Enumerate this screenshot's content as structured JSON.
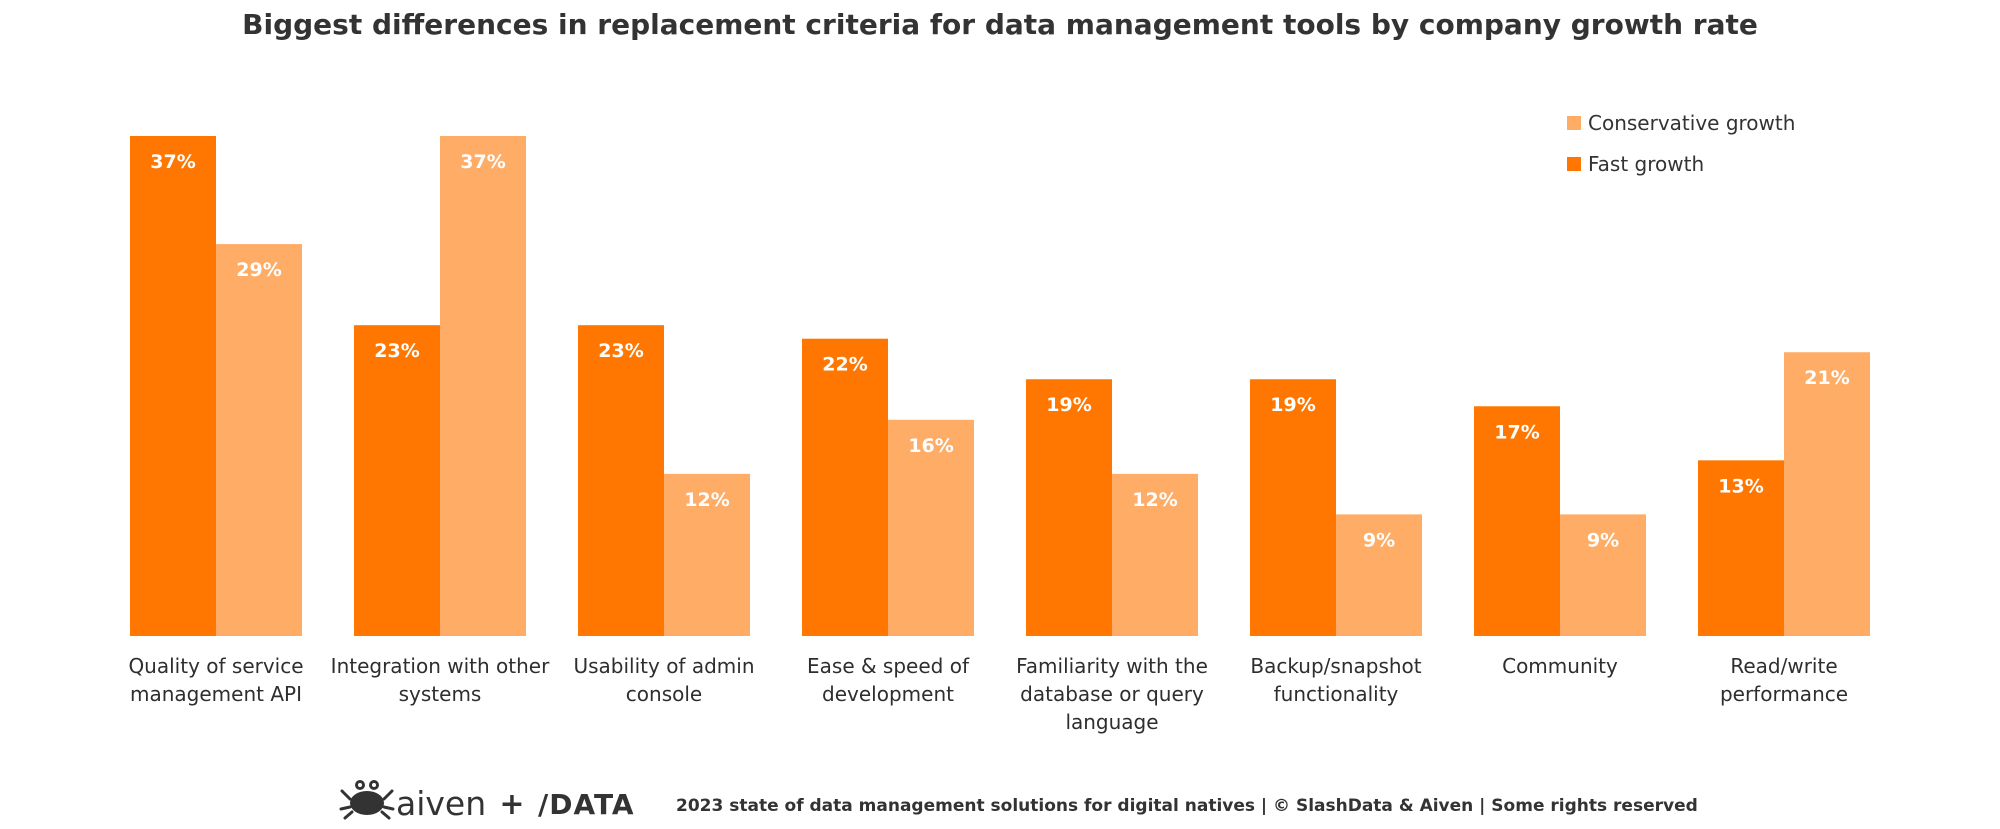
{
  "chart_data": {
    "type": "bar",
    "title": "Biggest differences in replacement criteria for data management tools by company growth rate",
    "categories": [
      [
        "Quality of service",
        "management API"
      ],
      [
        "Integration with other",
        "systems"
      ],
      [
        "Usability of admin",
        "console"
      ],
      [
        "Ease & speed of",
        "development"
      ],
      [
        "Familiarity with the",
        "database or query",
        "language"
      ],
      [
        "Backup/snapshot",
        "functionality"
      ],
      [
        "Community"
      ],
      [
        "Read/write",
        "performance"
      ]
    ],
    "series": [
      {
        "name": "Fast growth",
        "color": "#ff7700",
        "values": [
          37,
          23,
          23,
          22,
          19,
          19,
          17,
          13
        ],
        "labels": [
          "37%",
          "23%",
          "23%",
          "22%",
          "19%",
          "19%",
          "17%",
          "13%"
        ]
      },
      {
        "name": "Conservative growth",
        "color": "#ffac66",
        "values": [
          29,
          37,
          12,
          16,
          12,
          9,
          9,
          21
        ],
        "labels": [
          "29%",
          "37%",
          "12%",
          "16%",
          "12%",
          "9%",
          "9%",
          "21%"
        ]
      }
    ],
    "legend": [
      "Conservative growth",
      "Fast growth"
    ],
    "legend_position": "top-right",
    "unit": "%",
    "ylim": [
      0,
      37
    ],
    "grid": false
  },
  "footer": {
    "logo_text": "aiven",
    "plus": "+",
    "partner_logo_text": "/DATA",
    "text": "2023 state of data management solutions for digital natives | © SlashData & Aiven | Some rights reserved"
  }
}
